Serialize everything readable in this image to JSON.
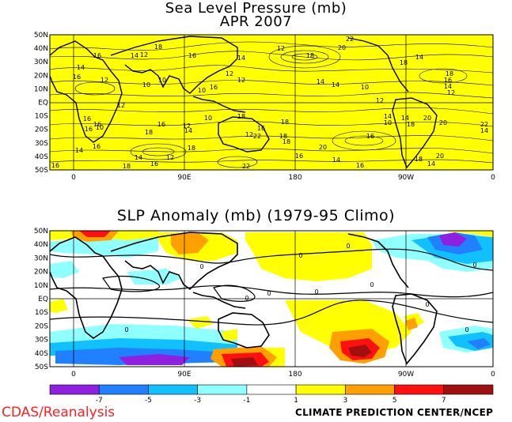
{
  "top_panel": {
    "title": "Sea Level Pressure (mb)",
    "subtitle": "APR 2007",
    "background_color": "#ffff00",
    "lat_labels": [
      "50N",
      "40N",
      "30N",
      "20N",
      "10N",
      "EQ",
      "10S",
      "20S",
      "30S",
      "40S",
      "50S"
    ],
    "lon_labels": [
      "0",
      "90E",
      "180",
      "90W",
      "0"
    ],
    "contour_labels": [
      "16",
      "14",
      "12",
      "18",
      "16",
      "14",
      "12",
      "18",
      "20",
      "22",
      "18",
      "14",
      "16",
      "14",
      "12",
      "18",
      "16",
      "14",
      "12",
      "10",
      "10",
      "10",
      "10",
      "16",
      "12",
      "12",
      "14",
      "14",
      "10",
      "12",
      "14",
      "10",
      "12",
      "16",
      "16",
      "16",
      "10",
      "12",
      "14",
      "16",
      "18",
      "16",
      "14",
      "12",
      "16",
      "18",
      "18",
      "18",
      "20",
      "16",
      "14",
      "18",
      "20",
      "20",
      "22",
      "14",
      "18",
      "22",
      "14",
      "16",
      "12",
      "18",
      "16",
      "14",
      "16",
      "18",
      "14",
      "20",
      "22",
      "18",
      "16"
    ]
  },
  "bottom_panel": {
    "title": "SLP Anomaly (mb) (1979-95 Climo)",
    "lat_labels": [
      "50N",
      "40N",
      "30N",
      "20N",
      "10N",
      "EQ",
      "10S",
      "20S",
      "30S",
      "40S",
      "50S"
    ],
    "lon_labels": [
      "0",
      "90E",
      "180",
      "90W",
      "0"
    ],
    "contour_labels": [
      "0",
      "0",
      "0",
      "0",
      "0",
      "0",
      "0",
      "0",
      "0",
      "0",
      "0"
    ]
  },
  "colorbar": {
    "labels": [
      "-7",
      "-5",
      "-3",
      "-1",
      "1",
      "3",
      "5",
      "7"
    ],
    "colors": [
      "#9020e0",
      "#2080ff",
      "#10c0ff",
      "#90ffff",
      "#ffffff",
      "#ffff00",
      "#ffa000",
      "#ff1010",
      "#a01010"
    ]
  },
  "footer": {
    "left": "CDAS/Reanalysis",
    "right": "CLIMATE PREDICTION CENTER/NCEP"
  }
}
